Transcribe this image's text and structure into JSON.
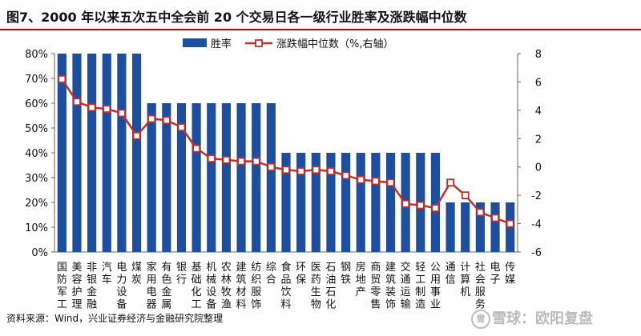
{
  "chart_data": {
    "type": "bar+line",
    "title": "图7、2000 年以来五次五中全会前 20 个交易日各一级行业胜率及涨跌幅中位数",
    "categories": [
      {
        "id": "guofang",
        "chars": [
          "国",
          "防",
          "军",
          "工"
        ]
      },
      {
        "id": "meirong",
        "chars": [
          "美",
          "容",
          "护",
          "理"
        ]
      },
      {
        "id": "feiyinjinrong",
        "chars": [
          "非",
          "银",
          "金",
          "融"
        ]
      },
      {
        "id": "qiche",
        "chars": [
          "汽",
          "车"
        ]
      },
      {
        "id": "dianlishebei",
        "chars": [
          "电",
          "力",
          "设",
          "备"
        ]
      },
      {
        "id": "meitan",
        "chars": [
          "煤",
          "炭"
        ]
      },
      {
        "id": "jiayongdianqi",
        "chars": [
          "家",
          "用",
          "电",
          "器"
        ]
      },
      {
        "id": "youse",
        "chars": [
          "有",
          "色",
          "金",
          "属"
        ]
      },
      {
        "id": "yinhang",
        "chars": [
          "银",
          "行"
        ]
      },
      {
        "id": "jichuhuagong",
        "chars": [
          "基",
          "础",
          "化",
          "工"
        ]
      },
      {
        "id": "jixie",
        "chars": [
          "机",
          "械",
          "设",
          "备"
        ]
      },
      {
        "id": "nonglinmuyu",
        "chars": [
          "农",
          "林",
          "牧",
          "渔"
        ]
      },
      {
        "id": "jianzhucailiao",
        "chars": [
          "建",
          "筑",
          "材",
          "料"
        ]
      },
      {
        "id": "fangzhifushi",
        "chars": [
          "纺",
          "织",
          "服",
          "饰"
        ]
      },
      {
        "id": "zonghe",
        "chars": [
          "综",
          "合"
        ]
      },
      {
        "id": "shipinyinliao",
        "chars": [
          "食",
          "品",
          "饮",
          "料"
        ]
      },
      {
        "id": "huanbao",
        "chars": [
          "环",
          "保"
        ]
      },
      {
        "id": "yiyao",
        "chars": [
          "医",
          "药",
          "生",
          "物"
        ]
      },
      {
        "id": "shiyou",
        "chars": [
          "石",
          "油",
          "石",
          "化"
        ]
      },
      {
        "id": "gangtie",
        "chars": [
          "钢",
          "铁"
        ]
      },
      {
        "id": "fangdichan",
        "chars": [
          "房",
          "地",
          "产"
        ]
      },
      {
        "id": "shangmao",
        "chars": [
          "商",
          "贸",
          "零",
          "售"
        ]
      },
      {
        "id": "jianzhuzhuangshi",
        "chars": [
          "建",
          "筑",
          "装",
          "饰"
        ]
      },
      {
        "id": "jiaotong",
        "chars": [
          "交",
          "通",
          "运",
          "输"
        ]
      },
      {
        "id": "qinggong",
        "chars": [
          "轻",
          "工",
          "制",
          "造"
        ]
      },
      {
        "id": "gonggong",
        "chars": [
          "公",
          "用",
          "事",
          "业"
        ]
      },
      {
        "id": "tongxin",
        "chars": [
          "通",
          "信"
        ]
      },
      {
        "id": "jisuanji",
        "chars": [
          "计",
          "算",
          "机"
        ]
      },
      {
        "id": "shehuifuwu",
        "chars": [
          "社",
          "会",
          "服",
          "务"
        ]
      },
      {
        "id": "dianzi",
        "chars": [
          "电",
          "子"
        ]
      },
      {
        "id": "chuanmei",
        "chars": [
          "传",
          "媒"
        ]
      }
    ],
    "series": [
      {
        "name": "胜率",
        "type": "bar",
        "axis": "left",
        "color": "#1f4e9c",
        "values": [
          80,
          80,
          80,
          80,
          80,
          80,
          60,
          60,
          60,
          60,
          60,
          60,
          60,
          60,
          60,
          40,
          40,
          40,
          40,
          40,
          40,
          40,
          40,
          40,
          40,
          40,
          20,
          20,
          20,
          20,
          20
        ]
      },
      {
        "name": "涨跌幅中位数（%,右轴）",
        "type": "line",
        "axis": "right",
        "color": "#c0302a",
        "values": [
          6.2,
          4.6,
          4.2,
          4.1,
          3.8,
          2.2,
          3.4,
          3.3,
          2.8,
          1.3,
          0.6,
          0.5,
          0.4,
          0.4,
          0.0,
          -0.2,
          -0.3,
          -0.2,
          -0.3,
          -0.6,
          -0.9,
          -1.0,
          -1.1,
          -2.6,
          -2.7,
          -2.9,
          -1.1,
          -2.0,
          -3.2,
          -3.6,
          -4.0
        ]
      }
    ],
    "y_left": {
      "min": 0,
      "max": 80,
      "step": 10,
      "tick_labels": [
        "0%",
        "10%",
        "20%",
        "30%",
        "40%",
        "50%",
        "60%",
        "70%",
        "80%"
      ]
    },
    "y_right": {
      "min": -6,
      "max": 8,
      "step": 2,
      "tick_labels": [
        "-6",
        "-4",
        "-2",
        "0",
        "2",
        "4",
        "6",
        "8"
      ]
    },
    "legend": {
      "position": "top-center",
      "items": [
        "胜率",
        "涨跌幅中位数（%,右轴）"
      ]
    },
    "grid": false
  },
  "source": "资料来源：Wind，兴业证券经济与金融研究院整理",
  "watermark": {
    "icon": "雪",
    "text": "雪球：欧阳复盘"
  }
}
